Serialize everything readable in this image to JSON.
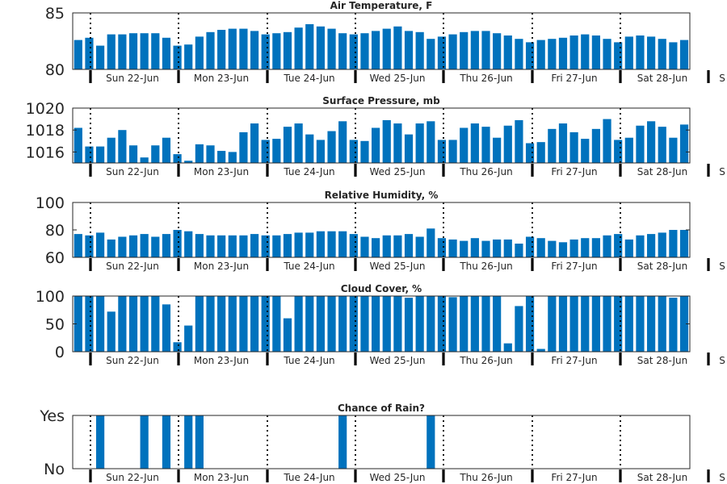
{
  "colors": {
    "bar": "#0072bd",
    "axis": "#262626",
    "day_separator": "#000000"
  },
  "day_tick_labels": [
    "Sun 22-Jun",
    "Mon 23-Jun",
    "Tue 24-Jun",
    "Wed 25-Jun",
    "Thu 26-Jun",
    "Fri 27-Jun",
    "Sat 28-Jun",
    "S"
  ],
  "chart_data": [
    {
      "type": "bar",
      "title": "Air Temperature, F",
      "ylim": [
        80,
        85
      ],
      "yticks": [
        80,
        85
      ],
      "ytick_labels": [
        "80",
        "85"
      ],
      "values": [
        82.6,
        82.8,
        82.1,
        83.1,
        83.1,
        83.2,
        83.2,
        83.2,
        82.8,
        82.1,
        82.2,
        82.9,
        83.3,
        83.5,
        83.6,
        83.6,
        83.4,
        83.1,
        83.2,
        83.3,
        83.7,
        84.0,
        83.8,
        83.6,
        83.2,
        83.1,
        83.2,
        83.4,
        83.6,
        83.8,
        83.4,
        83.3,
        82.7,
        82.9,
        83.1,
        83.3,
        83.4,
        83.4,
        83.2,
        83.0,
        82.7,
        82.4,
        82.6,
        82.7,
        82.8,
        83.0,
        83.1,
        83.0,
        82.7,
        82.4,
        82.9,
        83.0,
        82.9,
        82.7,
        82.4,
        82.6
      ]
    },
    {
      "type": "bar",
      "title": "Surface Pressure, mb",
      "ylim": [
        1015,
        1020
      ],
      "yticks": [
        1016,
        1018,
        1020
      ],
      "ytick_labels": [
        "1016",
        "1018",
        "1020"
      ],
      "values": [
        1018.2,
        1016.5,
        1016.5,
        1017.3,
        1018.0,
        1016.6,
        1015.5,
        1016.6,
        1017.3,
        1015.8,
        1015.2,
        1016.7,
        1016.6,
        1016.1,
        1016.0,
        1017.8,
        1018.6,
        1017.1,
        1017.2,
        1018.3,
        1018.6,
        1017.6,
        1017.1,
        1017.9,
        1018.8,
        1017.1,
        1017.0,
        1018.2,
        1018.9,
        1018.6,
        1017.6,
        1018.6,
        1018.8,
        1017.1,
        1017.1,
        1018.2,
        1018.6,
        1018.3,
        1017.3,
        1018.4,
        1018.9,
        1016.8,
        1016.9,
        1018.1,
        1018.6,
        1017.8,
        1017.2,
        1018.1,
        1019.0,
        1017.1,
        1017.3,
        1018.4,
        1018.8,
        1018.3,
        1017.3,
        1018.5
      ]
    },
    {
      "type": "bar",
      "title": "Relative Humidity, %",
      "ylim": [
        60,
        100
      ],
      "yticks": [
        60,
        80,
        100
      ],
      "ytick_labels": [
        "60",
        "80",
        "100"
      ],
      "values": [
        77,
        76,
        78,
        73,
        75,
        76,
        77,
        75,
        77,
        80,
        79,
        77,
        76,
        76,
        76,
        76,
        77,
        76,
        76,
        77,
        78,
        78,
        79,
        79,
        79,
        77,
        75,
        74,
        76,
        76,
        77,
        75,
        81,
        74,
        73,
        72,
        74,
        72,
        73,
        73,
        70,
        75,
        74,
        72,
        71,
        73,
        74,
        74,
        76,
        77,
        73,
        76,
        77,
        78,
        80,
        80
      ]
    },
    {
      "type": "bar",
      "title": "Cloud Cover, %",
      "ylim": [
        0,
        100
      ],
      "yticks": [
        0,
        50,
        100
      ],
      "ytick_labels": [
        "0",
        "50",
        "100"
      ],
      "values": [
        100,
        100,
        100,
        72,
        100,
        100,
        100,
        100,
        85,
        17,
        47,
        100,
        100,
        100,
        100,
        100,
        100,
        100,
        100,
        60,
        100,
        100,
        100,
        100,
        100,
        100,
        100,
        100,
        100,
        100,
        97,
        100,
        100,
        100,
        98,
        100,
        100,
        100,
        100,
        15,
        82,
        100,
        5,
        100,
        100,
        100,
        100,
        100,
        100,
        100,
        100,
        100,
        100,
        100,
        97,
        100
      ]
    },
    {
      "type": "bar",
      "title": "Chance of Rain?",
      "ylim": [
        0,
        1
      ],
      "yticks": [
        0,
        1
      ],
      "ytick_labels": [
        "No",
        "Yes"
      ],
      "values": [
        0,
        0,
        1,
        0,
        0,
        0,
        1,
        0,
        1,
        0,
        1,
        1,
        0,
        0,
        0,
        0,
        0,
        0,
        0,
        0,
        0,
        0,
        0,
        0,
        1,
        0,
        0,
        0,
        0,
        0,
        0,
        0,
        1,
        0,
        0,
        0,
        0,
        0,
        0,
        0,
        0,
        0,
        0,
        0,
        0,
        0,
        0,
        0,
        0,
        0,
        0,
        0,
        0,
        0,
        0,
        0
      ]
    }
  ]
}
